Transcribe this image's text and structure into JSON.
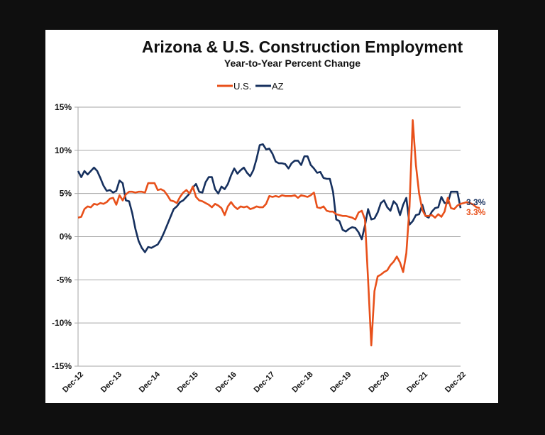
{
  "chart_data": {
    "type": "line",
    "title": "Arizona & U.S. Construction Employment",
    "subtitle": "Year-to-Year Percent Change",
    "xlabel": "",
    "ylabel": "",
    "ylim": [
      -15,
      15
    ],
    "yticks": [
      15,
      10,
      5,
      0,
      -5,
      -10,
      -15
    ],
    "ytick_labels": [
      "15%",
      "10%",
      "5%",
      "0%",
      "-5%",
      "-10%",
      "-15%"
    ],
    "xtick_labels": [
      "Dec-12",
      "Dec-13",
      "Dec-14",
      "Dec-15",
      "Dec-16",
      "Dec-17",
      "Dec-18",
      "Dec-19",
      "Dec-20",
      "Dec-21",
      "Dec-22"
    ],
    "x_start": "Dec-12",
    "x_end": "Dec-22",
    "x_frequency": "monthly",
    "grid": "horizontal",
    "legend_position": "top-center",
    "colors": {
      "us": "#e8501a",
      "az": "#16305e"
    },
    "series": [
      {
        "name": "U.S.",
        "end_label": "3.3%",
        "values": [
          2.2,
          2.3,
          3.2,
          3.5,
          3.4,
          3.8,
          3.7,
          3.9,
          3.8,
          4.0,
          4.4,
          4.5,
          3.7,
          4.8,
          4.2,
          4.9,
          5.2,
          5.2,
          5.1,
          5.2,
          5.2,
          5.1,
          6.2,
          6.2,
          6.2,
          5.4,
          5.5,
          5.3,
          4.8,
          4.2,
          4.1,
          3.9,
          4.6,
          5.1,
          5.4,
          5.0,
          5.8,
          4.6,
          4.2,
          4.1,
          3.9,
          3.7,
          3.4,
          3.8,
          3.6,
          3.3,
          2.5,
          3.5,
          4.0,
          3.5,
          3.2,
          3.5,
          3.4,
          3.5,
          3.2,
          3.3,
          3.5,
          3.4,
          3.4,
          3.8,
          4.7,
          4.6,
          4.7,
          4.6,
          4.8,
          4.7,
          4.7,
          4.7,
          4.8,
          4.5,
          4.8,
          4.7,
          4.6,
          4.8,
          5.1,
          3.4,
          3.3,
          3.5,
          3.0,
          2.9,
          2.9,
          2.6,
          2.5,
          2.4,
          2.4,
          2.3,
          2.2,
          2.0,
          2.8,
          3.0,
          2.0,
          -5.0,
          -12.6,
          -6.3,
          -4.6,
          -4.4,
          -4.1,
          -3.9,
          -3.3,
          -2.9,
          -2.3,
          -3.0,
          -4.1,
          -1.9,
          3.5,
          13.5,
          8.3,
          5.0,
          3.1,
          2.4,
          2.4,
          2.5,
          2.2,
          2.6,
          2.3,
          2.9,
          4.5,
          3.3,
          3.2,
          3.6,
          3.8,
          3.9,
          4.0,
          3.9,
          3.7,
          3.4,
          3.3
        ]
      },
      {
        "name": "AZ",
        "end_label": "3.3%",
        "values": [
          7.6,
          6.9,
          7.6,
          7.2,
          7.6,
          8.0,
          7.6,
          6.8,
          5.9,
          5.3,
          5.4,
          5.1,
          5.3,
          6.5,
          6.2,
          4.2,
          4.1,
          2.7,
          0.9,
          -0.5,
          -1.3,
          -1.8,
          -1.2,
          -1.3,
          -1.1,
          -0.9,
          -0.3,
          0.5,
          1.4,
          2.3,
          3.2,
          3.5,
          4.0,
          4.2,
          4.6,
          5.0,
          5.7,
          6.1,
          5.2,
          5.1,
          6.3,
          6.9,
          6.9,
          5.5,
          5.0,
          5.8,
          5.5,
          6.1,
          7.1,
          7.9,
          7.3,
          7.7,
          8.0,
          7.4,
          7.0,
          7.7,
          9.0,
          10.6,
          10.7,
          10.1,
          10.2,
          9.6,
          8.7,
          8.5,
          8.5,
          8.4,
          7.9,
          8.5,
          8.8,
          8.8,
          8.3,
          9.3,
          9.3,
          8.3,
          7.9,
          7.4,
          7.5,
          6.8,
          6.7,
          6.7,
          5.2,
          2.0,
          1.8,
          0.8,
          0.6,
          0.9,
          1.1,
          1.0,
          0.5,
          -0.3,
          1.3,
          3.2,
          2.0,
          2.1,
          2.8,
          3.9,
          4.2,
          3.4,
          3.0,
          4.1,
          3.7,
          2.5,
          3.7,
          4.5,
          1.4,
          1.8,
          2.5,
          2.6,
          3.7,
          2.4,
          2.2,
          2.9,
          3.3,
          3.4,
          4.6,
          3.9,
          3.9,
          5.2,
          5.2,
          5.2,
          3.3
        ]
      }
    ]
  }
}
